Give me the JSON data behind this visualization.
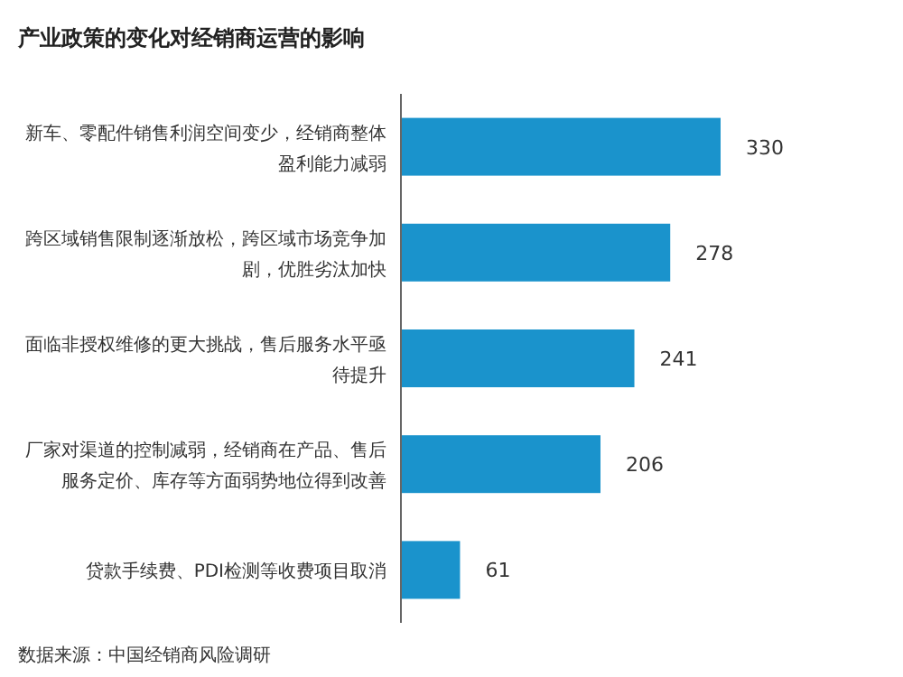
{
  "chart_data": {
    "type": "bar",
    "orientation": "horizontal",
    "title": "产业政策的变化对经销商运营的影响",
    "categories": [
      "新车、零配件销售利润空间变少，经销商整体盈利能力减弱",
      "跨区域销售限制逐渐放松，跨区域市场竞争加剧，优胜劣汰加快",
      "面临非授权维修的更大挑战，售后服务水平亟待提升",
      "厂家对渠道的控制减弱，经销商在产品、售后服务定价、库存等方面弱势地位得到改善",
      "贷款手续费、PDI检测等收费项目取消"
    ],
    "values": [
      330,
      278,
      241,
      206,
      61
    ],
    "color": "#1a93cc",
    "data_labels": true,
    "annotations": [
      "数据来源：中国经销商风险调研"
    ]
  }
}
